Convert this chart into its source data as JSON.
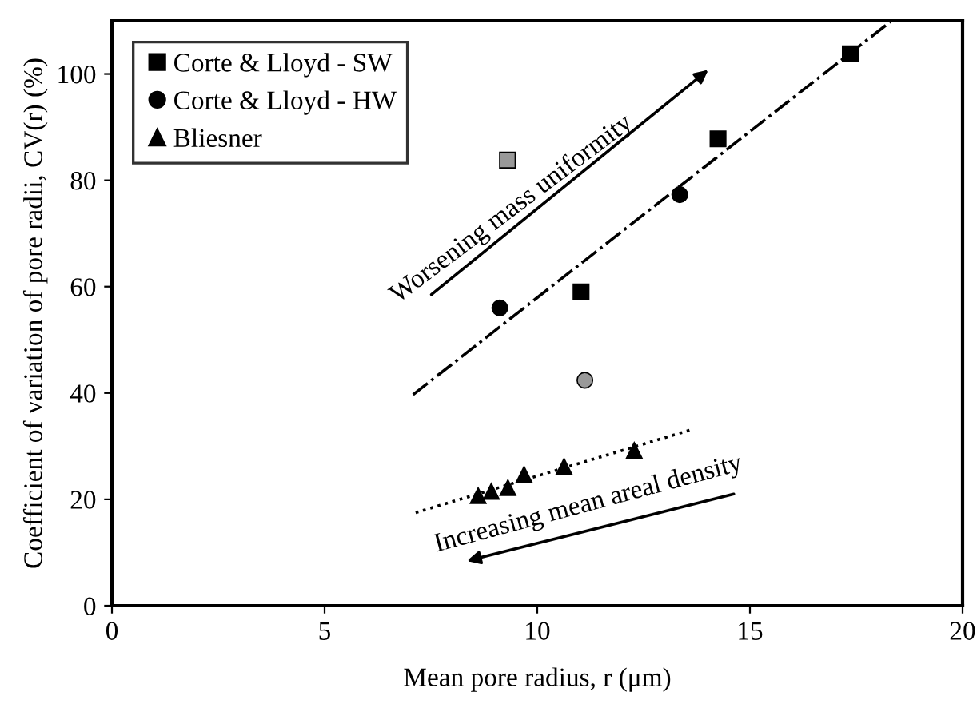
{
  "chart_data": {
    "type": "scatter",
    "xlabel": "Mean pore radius, r (μm)",
    "ylabel": "Coefficient of variation of pore radii, CV(r) (%)",
    "xlim": [
      0,
      20
    ],
    "xticks": [
      0,
      5,
      10,
      15,
      20
    ],
    "ylim": [
      0,
      110
    ],
    "yticks": [
      0,
      20,
      40,
      60,
      80,
      100
    ],
    "grid": false,
    "legend": "top left",
    "annotations": [
      "Worsening mass uniformity",
      "Increasing mean areal density"
    ],
    "series": [
      {
        "name": "Corte & Lloyd - SW",
        "color": "#000000",
        "marker": "square",
        "x": [
          11.03,
          14.25,
          17.36
        ],
        "values": [
          59,
          87.8,
          103.8
        ]
      },
      {
        "name": "Corte & Lloyd - HW",
        "color": "#000000",
        "marker": "circle",
        "x": [
          9.12,
          13.35
        ],
        "values": [
          56,
          77.3
        ]
      },
      {
        "name": "Bliesner",
        "color": "#000000",
        "marker": "triangle",
        "x": [
          8.61,
          8.92,
          9.31,
          9.69,
          10.63,
          12.28
        ],
        "values": [
          20.7,
          21.5,
          22.2,
          24.7,
          26.2,
          29.2
        ]
      },
      {
        "color": "#999999",
        "marker": "square",
        "x": [
          9.3
        ],
        "values": [
          83.8
        ]
      },
      {
        "color": "#999999",
        "marker": "circle",
        "x": [
          11.12
        ],
        "values": [
          42.4
        ]
      },
      {
        "type": "line",
        "color": "#000000",
        "line_style": "dashdot",
        "marker": "none",
        "x": [
          7.08,
          18.3
        ],
        "values": [
          39.7,
          109.8
        ]
      },
      {
        "type": "line",
        "color": "#000000",
        "line_style": "dotted",
        "marker": "none",
        "x": [
          7.14,
          13.66
        ],
        "values": [
          17.5,
          33.2
        ]
      }
    ]
  }
}
